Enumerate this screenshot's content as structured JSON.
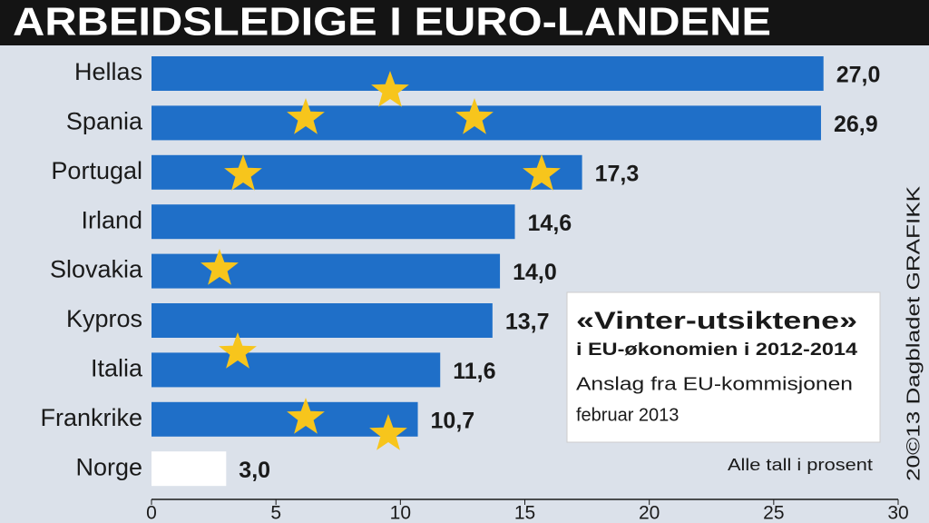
{
  "chart_data": {
    "type": "bar",
    "orientation": "horizontal",
    "title": "ARBEIDSLEDIGE I EURO-LANDENE",
    "categories": [
      "Hellas",
      "Spania",
      "Portugal",
      "Irland",
      "Slovakia",
      "Kypros",
      "Italia",
      "Frankrike",
      "Norge"
    ],
    "values": [
      27.0,
      26.9,
      17.3,
      14.6,
      14.0,
      13.7,
      11.6,
      10.7,
      3.0
    ],
    "value_labels": [
      "27,0",
      "26,9",
      "17,3",
      "14,6",
      "14,0",
      "13,7",
      "11,6",
      "10,7",
      "3,0"
    ],
    "colors": [
      "#1f6fc8",
      "#1f6fc8",
      "#1f6fc8",
      "#1f6fc8",
      "#1f6fc8",
      "#1f6fc8",
      "#1f6fc8",
      "#1f6fc8",
      "#ffffff"
    ],
    "xlim": [
      0,
      30
    ],
    "xticks": [
      0,
      5,
      10,
      15,
      20,
      25,
      30
    ],
    "annotations": {
      "heading": "«Vinter-utsiktene»",
      "subheading": "i EU-økonomien i 2012-2014",
      "source": "Anslag fra EU-kommisjonen",
      "date": "februar 2013"
    },
    "note": "Alle tall i prosent",
    "credit": "20©13 Dagbladet GRAFIKK"
  }
}
